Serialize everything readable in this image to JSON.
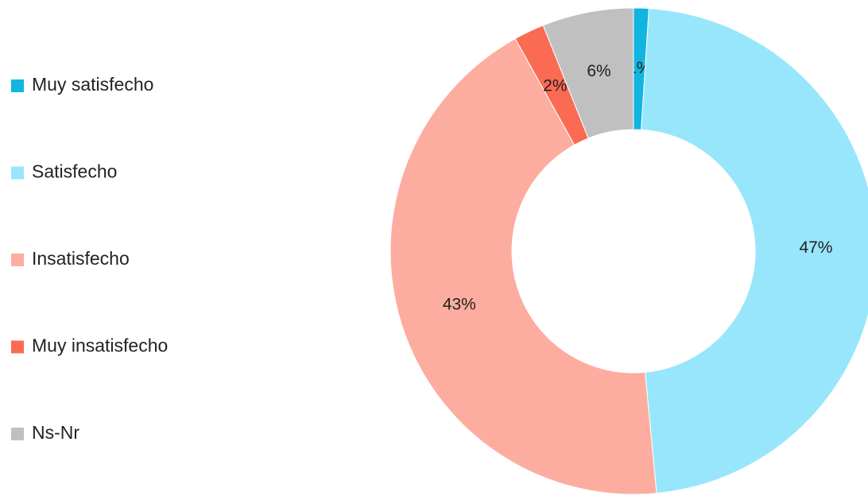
{
  "chart_data": {
    "type": "donut",
    "categories": [
      "Muy satisfecho",
      "Satisfecho",
      "Insatisfecho",
      "Muy insatisfecho",
      "Ns-Nr"
    ],
    "values": [
      1,
      47,
      43,
      2,
      6
    ],
    "value_labels": [
      "1%",
      "47%",
      "43%",
      "2%",
      "6%"
    ],
    "colors": [
      "#12b5e0",
      "#98e6fb",
      "#fdada0",
      "#fb6a53",
      "#c0c0c0"
    ],
    "legend": "left"
  }
}
